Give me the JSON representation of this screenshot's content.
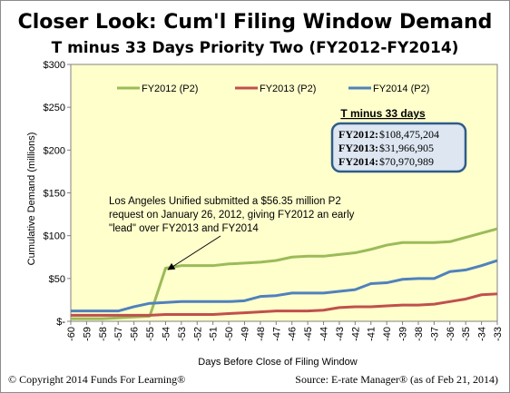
{
  "chart_data": {
    "type": "line",
    "title": "Closer Look: Cum'l Filing Window Demand",
    "subtitle": "T minus 33 Days Priority Two (FY2012-FY2014)",
    "xlabel": "Days Before Close of Filing Window",
    "ylabel": "Cumulative Demand (millions)",
    "x": [
      -60,
      -59,
      -58,
      -57,
      -56,
      -55,
      -54,
      -53,
      -52,
      -51,
      -50,
      -49,
      -48,
      -47,
      -46,
      -45,
      -44,
      -43,
      -42,
      -41,
      -40,
      -39,
      -38,
      -37,
      -36,
      -35,
      -34,
      -33
    ],
    "x_tick_labels": [
      "-60",
      "-59",
      "-58",
      "-57",
      "-56",
      "-55",
      "-54",
      "-53",
      "-52",
      "-51",
      "-50",
      "-49",
      "-48",
      "-47",
      "-46",
      "-45",
      "-44",
      "-43",
      "-42",
      "-41",
      "-40",
      "-39",
      "-38",
      "-37",
      "-36",
      "-35",
      "-34",
      "-33"
    ],
    "ylim": [
      0,
      300
    ],
    "y_ticks": [
      0,
      50,
      100,
      150,
      200,
      250,
      300
    ],
    "y_tick_labels": [
      "$-",
      "$50",
      "$100",
      "$150",
      "$200",
      "$250",
      "$300"
    ],
    "grid": false,
    "legend_position": "top",
    "series": [
      {
        "name": "FY2012 (P2)",
        "color": "#9bbb59",
        "values": [
          3,
          3,
          3,
          4,
          5,
          6,
          62,
          65,
          65,
          65,
          67,
          68,
          69,
          71,
          75,
          76,
          76,
          78,
          80,
          84,
          89,
          92,
          92,
          92,
          93,
          98,
          103,
          108
        ]
      },
      {
        "name": "FY2013 (P2)",
        "color": "#c0504d",
        "values": [
          7,
          7,
          7,
          7,
          7,
          7,
          8,
          8,
          8,
          8,
          9,
          10,
          11,
          12,
          12,
          12,
          13,
          16,
          17,
          17,
          18,
          19,
          19,
          20,
          23,
          26,
          31,
          32
        ]
      },
      {
        "name": "FY2014 (P2)",
        "color": "#4f81bd",
        "values": [
          12,
          12,
          12,
          12,
          17,
          21,
          22,
          23,
          23,
          23,
          23,
          24,
          29,
          30,
          33,
          33,
          33,
          35,
          37,
          44,
          45,
          49,
          50,
          50,
          58,
          60,
          65,
          71
        ]
      }
    ],
    "annotation": {
      "lines": [
        "Los Angeles Unified submitted a $56.35 million P2",
        "request on January 26, 2012, giving FY2012 an early",
        "\"lead\" over FY2013 and FY2014"
      ],
      "target_x": -54,
      "target_y": 62
    },
    "info_box": {
      "title": "T minus 33 days",
      "rows": [
        {
          "label": "FY2012:",
          "value": "$108,475,204"
        },
        {
          "label": "FY2013:",
          "value": "$31,966,905"
        },
        {
          "label": "FY2014:",
          "value": "$70,970,989"
        }
      ]
    }
  },
  "footer": {
    "left": "© Copyright  2014 Funds For Learning®",
    "right": "Source: E-rate  Manager®  (as of Feb 21, 2014)"
  },
  "colors": {
    "plot_background": "#ffffcc",
    "info_box_border": "#2e5c8a",
    "info_box_fill": "#dde6f1"
  }
}
